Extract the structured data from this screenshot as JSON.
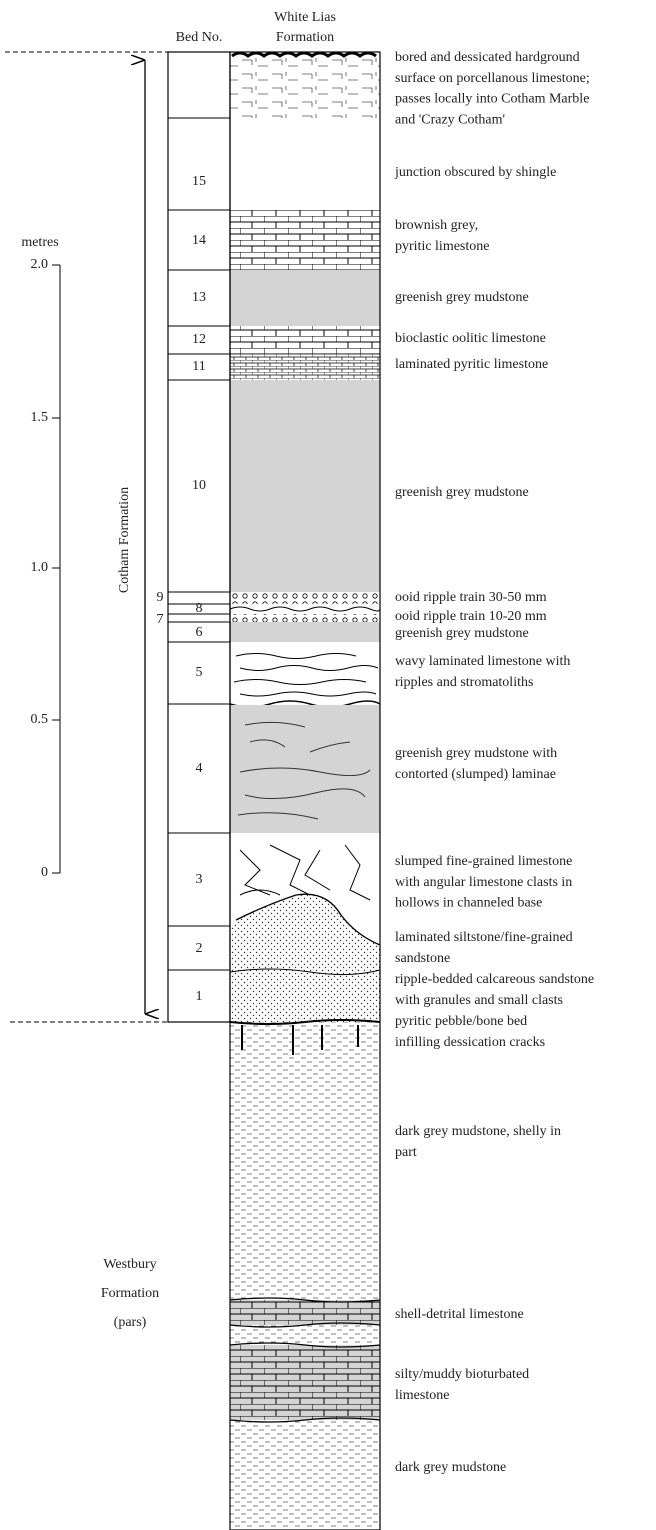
{
  "header": {
    "bed_no": "Bed No.",
    "formation": [
      "White Lias",
      "Formation"
    ]
  },
  "scale": {
    "unit": "metres",
    "ticks": [
      "2.0",
      "1.5",
      "1.0",
      "0.5",
      "0"
    ]
  },
  "formations": {
    "cotham": "Cotham Formation",
    "westbury": [
      "Westbury",
      "Formation",
      "(pars)"
    ]
  },
  "beds": [
    "15",
    "14",
    "13",
    "12",
    "11",
    "10",
    "9",
    "8",
    "7",
    "6",
    "5",
    "4",
    "3",
    "2",
    "1"
  ],
  "descriptions": [
    {
      "lines": [
        "bored and dessicated hardground",
        "surface on porcellanous limestone;",
        "passes locally into Cotham Marble",
        "and 'Crazy Cotham'"
      ]
    },
    {
      "lines": [
        "junction obscured by shingle"
      ]
    },
    {
      "lines": [
        "brownish grey,",
        "pyritic limestone"
      ]
    },
    {
      "lines": [
        "greenish grey mudstone"
      ]
    },
    {
      "lines": [
        "bioclastic oolitic limestone"
      ]
    },
    {
      "lines": [
        "laminated pyritic limestone"
      ]
    },
    {
      "lines": [
        "greenish grey mudstone"
      ]
    },
    {
      "lines": [
        "ooid ripple train  30-50 mm"
      ]
    },
    {
      "lines": [
        "ooid ripple train  10-20 mm"
      ]
    },
    {
      "lines": [
        "greenish grey mudstone"
      ]
    },
    {
      "lines": [
        "wavy laminated limestone with",
        "ripples and stromatoliths"
      ]
    },
    {
      "lines": [
        "greenish grey mudstone with",
        "contorted (slumped) laminae"
      ]
    },
    {
      "lines": [
        "slumped fine-grained limestone",
        "with angular limestone clasts in",
        "hollows in channeled base"
      ]
    },
    {
      "lines": [
        "laminated siltstone/fine-grained",
        "sandstone"
      ]
    },
    {
      "lines": [
        "ripple-bedded calcareous sandstone",
        "with granules and small clasts"
      ]
    },
    {
      "lines": [
        "pyritic pebble/bone bed",
        "infilling dessication cracks"
      ]
    },
    {
      "lines": [
        "dark grey mudstone, shelly in",
        "part"
      ]
    },
    {
      "lines": [
        "shell-detrital limestone"
      ]
    },
    {
      "lines": [
        "silty/muddy bioturbated",
        "limestone"
      ]
    },
    {
      "lines": [
        "dark grey mudstone"
      ]
    }
  ]
}
